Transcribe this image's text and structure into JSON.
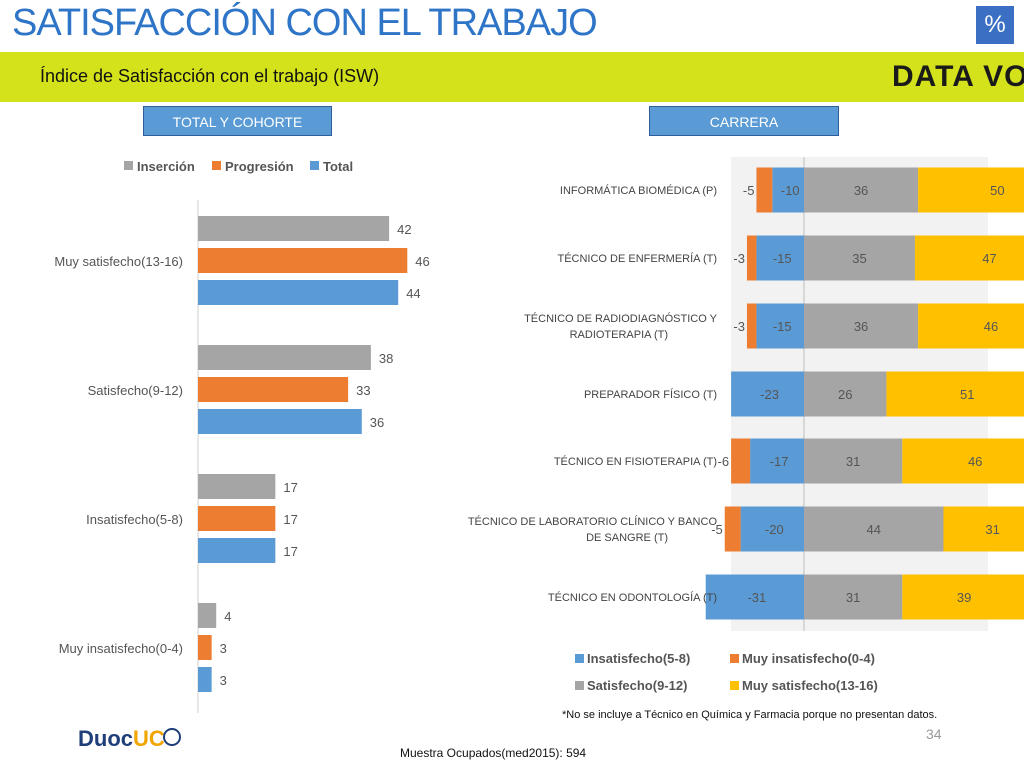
{
  "header": {
    "title": "SATISFACCIÓN CON EL TRABAJO",
    "badge": "%",
    "subtitle": "Índice de Satisfacción con el trabajo (ISW)",
    "logo_text": "DATA VOZ"
  },
  "sections": {
    "left": "TOTAL Y COHORTE",
    "right": "CARRERA"
  },
  "chart_data": [
    {
      "type": "bar",
      "orientation": "horizontal",
      "categories": [
        "Muy satisfecho(13-16)",
        "Satisfecho(9-12)",
        "Insatisfecho(5-8)",
        "Muy insatisfecho(0-4)"
      ],
      "series": [
        {
          "name": "Inserción",
          "color": "#a5a5a5",
          "values": [
            42,
            38,
            17,
            4
          ]
        },
        {
          "name": "Progresión",
          "color": "#ed7d31",
          "values": [
            46,
            33,
            17,
            3
          ]
        },
        {
          "name": "Total",
          "color": "#5b9bd5",
          "values": [
            44,
            36,
            17,
            3
          ]
        }
      ],
      "legend_position": "top"
    },
    {
      "type": "bar",
      "orientation": "horizontal",
      "stacked": "diverging",
      "categories": [
        "INFORMÁTICA BIOMÉDICA (P)",
        "TÉCNICO DE ENFERMERÍA (T)",
        "TÉCNICO DE RADIODIAGNÓSTICO Y RADIOTERAPIA (T)",
        "PREPARADOR FÍSICO (T)",
        "TÉCNICO EN FISIOTERAPIA (T)",
        "TÉCNICO DE LABORATORIO CLÍNICO Y BANCO DE SANGRE (T)",
        "TÉCNICO EN ODONTOLOGÍA (T)"
      ],
      "series": [
        {
          "name": "Insatisfecho(5-8)",
          "color": "#5b9bd5",
          "values": [
            -10,
            -15,
            -15,
            -23,
            -17,
            -20,
            -31
          ]
        },
        {
          "name": "Muy insatisfecho(0-4)",
          "color": "#ed7d31",
          "values": [
            -5,
            -3,
            -3,
            null,
            -6,
            -5,
            null
          ]
        },
        {
          "name": "Satisfecho(9-12)",
          "color": "#a5a5a5",
          "values": [
            36,
            35,
            36,
            26,
            31,
            44,
            31
          ]
        },
        {
          "name": "Muy satisfecho(13-16)",
          "color": "#ffc000",
          "values": [
            50,
            47,
            46,
            51,
            46,
            31,
            39
          ]
        }
      ],
      "legend_position": "bottom"
    }
  ],
  "footer": {
    "footnote": "*No se incluye a  Técnico en Química y Farmacia porque no presentan datos.",
    "page_number": "34",
    "sample": "Muestra Ocupados(med2015): 594",
    "duoc_text": "Duoc",
    "duoc_uc": "UC"
  }
}
